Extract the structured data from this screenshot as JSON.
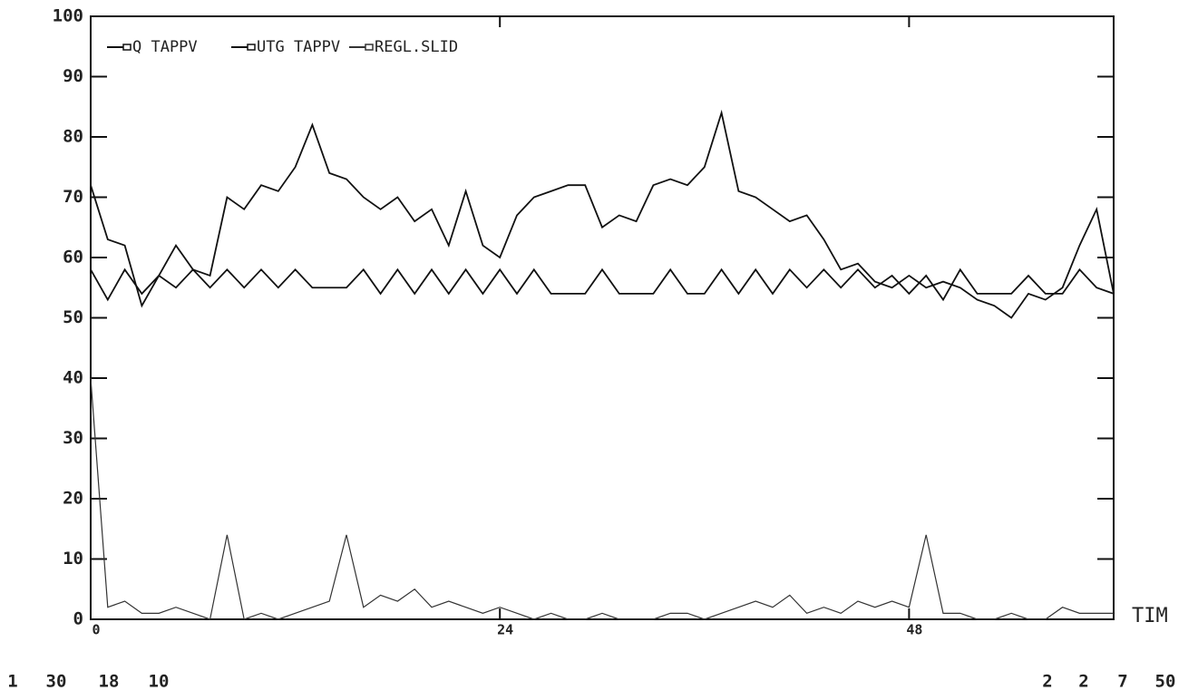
{
  "chart_data": {
    "type": "line",
    "x_label": "TIM",
    "x": [
      0,
      1,
      2,
      3,
      4,
      5,
      6,
      7,
      8,
      9,
      10,
      11,
      12,
      13,
      14,
      15,
      16,
      17,
      18,
      19,
      20,
      21,
      22,
      23,
      24,
      25,
      26,
      27,
      28,
      29,
      30,
      31,
      32,
      33,
      34,
      35,
      36,
      37,
      38,
      39,
      40,
      41,
      42,
      43,
      44,
      45,
      46,
      47,
      48,
      49,
      50,
      51,
      52,
      53,
      54,
      55,
      56,
      57,
      58,
      59,
      60
    ],
    "series": [
      {
        "name": "Q TAPPV",
        "color": "#111111",
        "values": [
          72,
          63,
          62,
          52,
          57,
          62,
          58,
          57,
          70,
          68,
          72,
          71,
          75,
          82,
          74,
          73,
          70,
          68,
          70,
          66,
          68,
          62,
          71,
          62,
          60,
          67,
          70,
          71,
          72,
          72,
          65,
          67,
          66,
          72,
          73,
          72,
          75,
          84,
          71,
          70,
          68,
          66,
          67,
          63,
          58,
          59,
          56,
          55,
          57,
          55,
          56,
          55,
          53,
          52,
          50,
          54,
          53,
          55,
          62,
          68,
          54
        ]
      },
      {
        "name": "UTG TAPPV",
        "color": "#111111",
        "values": [
          58,
          53,
          58,
          54,
          57,
          55,
          58,
          55,
          58,
          55,
          58,
          55,
          58,
          55,
          55,
          55,
          58,
          54,
          58,
          54,
          58,
          54,
          58,
          54,
          58,
          54,
          58,
          54,
          54,
          54,
          58,
          54,
          54,
          54,
          58,
          54,
          54,
          58,
          54,
          58,
          54,
          58,
          55,
          58,
          55,
          58,
          55,
          57,
          54,
          57,
          53,
          58,
          54,
          54,
          54,
          57,
          54,
          54,
          58,
          55,
          54
        ]
      },
      {
        "name": "REGL.SLID",
        "color": "#333333",
        "values": [
          40,
          2,
          3,
          1,
          1,
          2,
          1,
          0,
          14,
          0,
          1,
          0,
          1,
          2,
          3,
          14,
          2,
          4,
          3,
          5,
          2,
          3,
          2,
          1,
          2,
          1,
          0,
          1,
          0,
          0,
          1,
          0,
          0,
          0,
          1,
          1,
          0,
          1,
          2,
          3,
          2,
          4,
          1,
          2,
          1,
          3,
          2,
          3,
          2,
          14,
          1,
          1,
          0,
          0,
          1,
          0,
          0,
          2,
          1,
          1,
          1
        ]
      }
    ],
    "xlim": [
      0,
      60
    ],
    "xticks": [
      0,
      24,
      48
    ],
    "ylim": [
      0,
      100
    ],
    "yticks": [
      0,
      10,
      20,
      30,
      40,
      50,
      60,
      70,
      80,
      90,
      100
    ],
    "footer_left": [
      "1",
      "30",
      "18",
      "10"
    ],
    "footer_right": [
      "2",
      "2",
      "7",
      "50"
    ]
  }
}
